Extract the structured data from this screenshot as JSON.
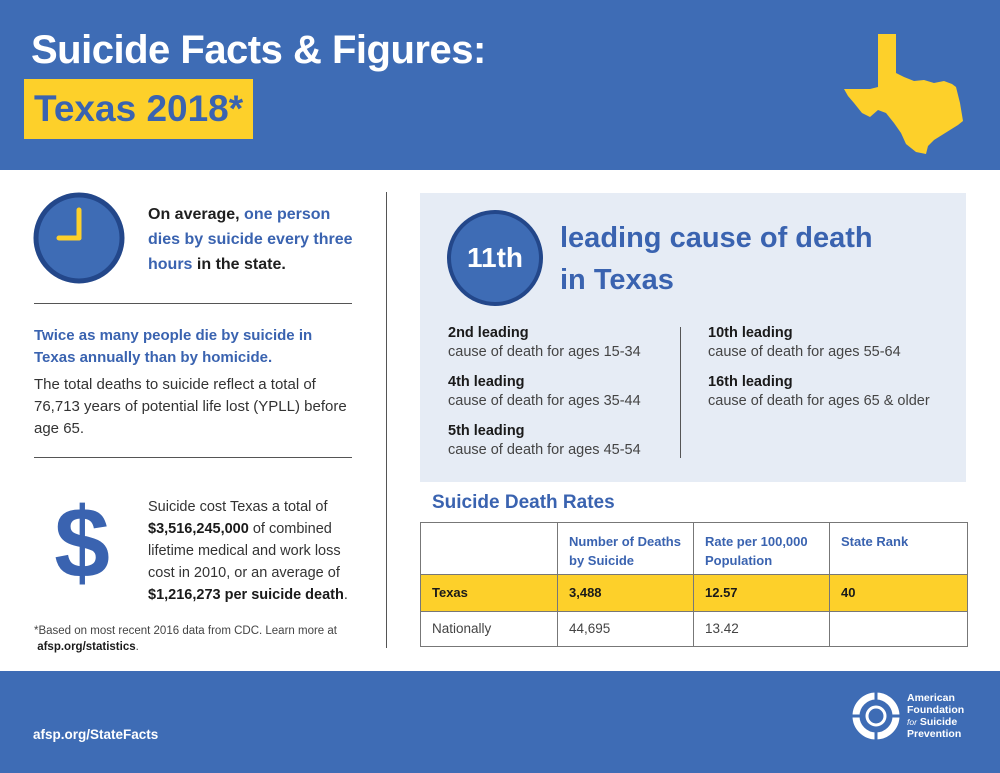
{
  "header": {
    "title_line1": "Suicide Facts & Figures:",
    "title_line2": "Texas 2018*"
  },
  "left": {
    "avg_pre": "On average, ",
    "avg_highlight": "one person dies by suicide every three hours",
    "avg_post": " in the state.",
    "twice_heading": "Twice as many people die by suicide in Texas annually than by homicide.",
    "total_text": "The total deaths to suicide reflect a total of 76,713 years of potential life lost (YPLL) before age 65.",
    "dollar_symbol": "$",
    "cost_pre": "Suicide cost Texas a total of ",
    "cost_total": "$3,516,245,000",
    "cost_mid": " of combined lifetime medical and work loss cost in 2010, or an average of ",
    "cost_avg": "$1,216,273 per suicide death",
    "cost_post": ".",
    "footnote": "*Based on most recent 2016 data from CDC. Learn more at",
    "footnote_link": "afsp.org/statistics",
    "footnote_end": "."
  },
  "ranking": {
    "rank": "11th",
    "title_line1": "leading cause of death",
    "title_line2": "in Texas",
    "causes": [
      {
        "lead": "2nd leading",
        "desc": "cause of death for ages 15-34"
      },
      {
        "lead": "4th leading",
        "desc": "cause of death for ages 35-44"
      },
      {
        "lead": "5th leading",
        "desc": "cause of death for ages 45-54"
      },
      {
        "lead": "10th leading",
        "desc": "cause of death for ages 55-64"
      },
      {
        "lead": "16th leading",
        "desc": "cause of death for ages 65 & older"
      }
    ]
  },
  "rates": {
    "title": "Suicide Death Rates",
    "headers": [
      "",
      "Number of Deaths by Suicide",
      "Rate per 100,000 Population",
      "State Rank"
    ],
    "rows": [
      [
        "Texas",
        "3,488",
        "12.57",
        "40"
      ],
      [
        "Nationally",
        "44,695",
        "13.42",
        ""
      ]
    ]
  },
  "footer": {
    "url": "afsp.org/StateFacts",
    "org_line1": "American",
    "org_line2": "Foundation",
    "org_for": "for",
    "org_line3": "Suicide",
    "org_line4": "Prevention"
  },
  "colors": {
    "brand_blue": "#3e6cb5",
    "accent_yellow": "#fdd02a",
    "panel_bg": "#e6ecf5"
  },
  "icons": [
    "clock-icon",
    "texas-map-icon",
    "afsp-logo-icon"
  ]
}
